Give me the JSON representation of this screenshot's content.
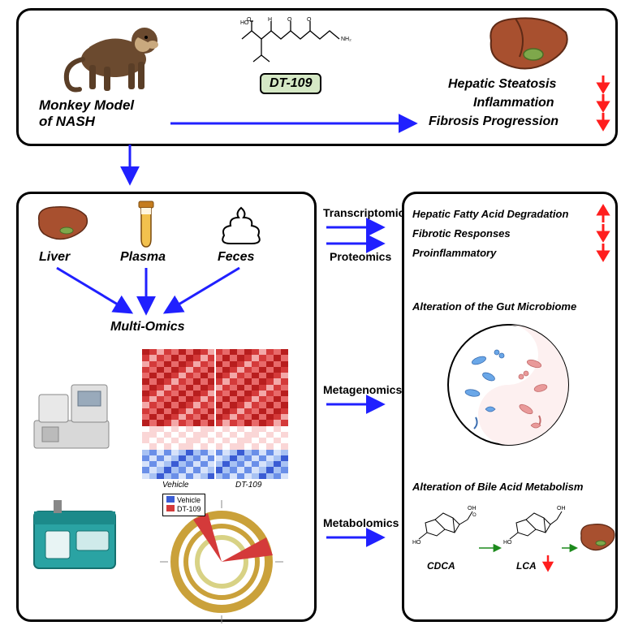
{
  "top": {
    "model_label": "Monkey Model\nof NASH",
    "drug_label": "DT-109",
    "outcomes": [
      {
        "text": "Hepatic Steatosis",
        "arrow": "down"
      },
      {
        "text": "Inflammation",
        "arrow": "down"
      },
      {
        "text": "Fibrosis Progression",
        "arrow": "down"
      }
    ]
  },
  "left": {
    "samples": [
      {
        "name": "Liver"
      },
      {
        "name": "Plasma"
      },
      {
        "name": "Feces"
      }
    ],
    "multiomics_label": "Multi-Omics",
    "heatmap": {
      "rows": 22,
      "cols": 20,
      "colors": [
        "#b81e1e",
        "#d43a3a",
        "#e86a6a",
        "#f3a8a8",
        "#fad6d6",
        "#ffffff",
        "#d6e2fa",
        "#a8c2f3",
        "#6a8fe8",
        "#3a5cd4"
      ],
      "legend_labels": [
        "Vehicle",
        "DT-109"
      ]
    },
    "circos": {
      "legend": [
        "Vehicle",
        "DT-109"
      ],
      "legend_colors": [
        "#3a5cd4",
        "#d43a3a"
      ]
    }
  },
  "mid_labels": {
    "transcriptomics": "Transcriptomics",
    "proteomics": "Proteomics",
    "metagenomics": "Metagenomics",
    "metabolomics": "Metabolomics"
  },
  "right": {
    "trans_prot": [
      {
        "text": "Hepatic Fatty Acid Degradation",
        "arrow": "up"
      },
      {
        "text": "Fibrotic Responses",
        "arrow": "down"
      },
      {
        "text": "Proinflammatory",
        "arrow": "down"
      }
    ],
    "metagenomics_title": "Alteration of the Gut Microbiome",
    "metabolomics_title": "Alteration of Bile Acid Metabolism",
    "bile": {
      "cdca": "CDCA",
      "lca": "LCA"
    }
  },
  "colors": {
    "blue": "#2020ff",
    "red": "#ff1e1e",
    "green": "#1c8a1c",
    "pill_bg": "#d5e8c5"
  }
}
